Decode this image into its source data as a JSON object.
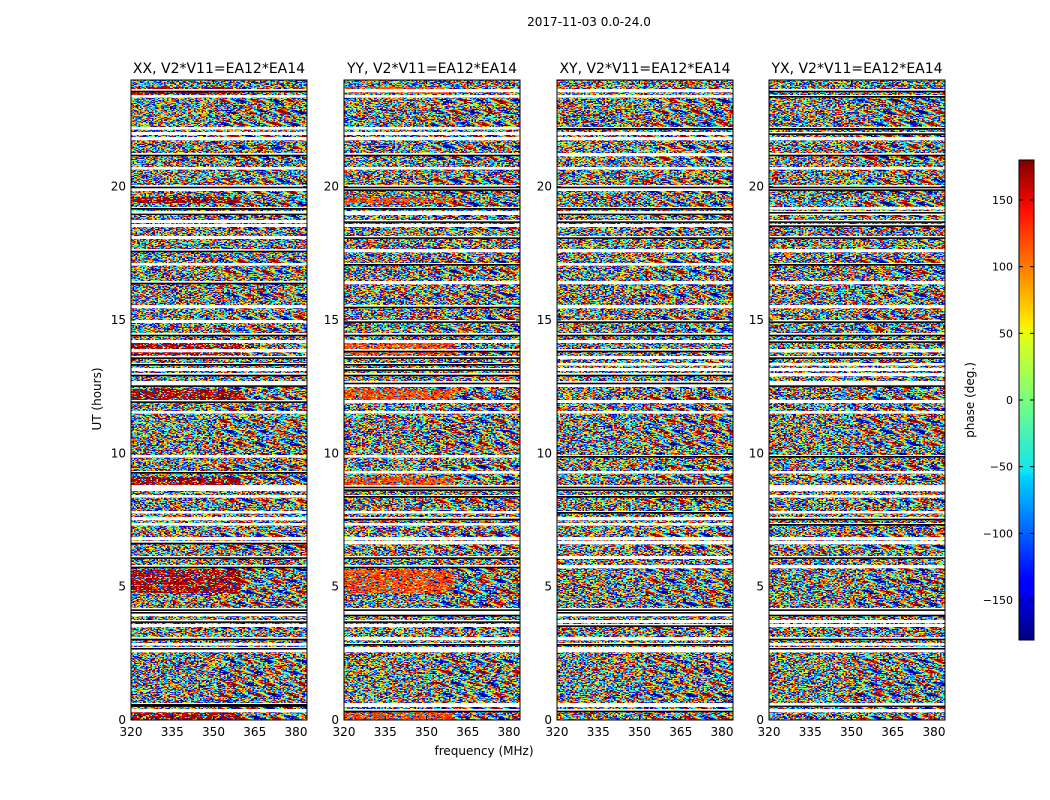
{
  "chart_data": {
    "type": "heatmap",
    "suptitle": "2017-11-03 0.0-24.0",
    "xlabel": "frequency (MHz)",
    "ylabel": "UT (hours)",
    "xlim": [
      320,
      384
    ],
    "ylim": [
      0,
      24
    ],
    "x_ticks": [
      320,
      335,
      350,
      365,
      380
    ],
    "y_ticks": [
      0,
      5,
      10,
      15,
      20
    ],
    "panels": [
      {
        "title": "XX, V2*V11=EA12*EA14",
        "polarization": "XX",
        "bias_phase_deg": 165,
        "red_hours": [
          0.1,
          0.3,
          4.9,
          5.2,
          5.5,
          8.9,
          9.0,
          12.1,
          12.3,
          13.8,
          14.0,
          19.5,
          23.6
        ]
      },
      {
        "title": "YY, V2*V11=EA12*EA14",
        "polarization": "YY",
        "bias_phase_deg": 110,
        "red_hours": [
          0.1,
          0.3,
          4.9,
          5.2,
          5.5,
          8.9,
          9.0,
          12.1,
          12.3,
          13.8,
          14.0,
          19.5,
          23.6
        ]
      },
      {
        "title": "XY, V2*V11=EA12*EA14",
        "polarization": "XY",
        "bias_phase_deg": null,
        "red_hours": []
      },
      {
        "title": "YX, V2*V11=EA12*EA14",
        "polarization": "YX",
        "bias_phase_deg": null,
        "red_hours": []
      }
    ],
    "flagged_hours": [
      0.35,
      0.55,
      0.6,
      2.6,
      2.7,
      2.85,
      3.05,
      3.55,
      3.7,
      3.95,
      4.05,
      4.15,
      5.75,
      6.1,
      6.65,
      6.8,
      7.35,
      7.55,
      7.8,
      8.4,
      8.65,
      8.75,
      9.3,
      9.9,
      11.55,
      11.95,
      12.55,
      12.65,
      12.95,
      13.15,
      13.35,
      13.6,
      13.85,
      14.2,
      14.45,
      14.95,
      15.5,
      16.4,
      17.1,
      17.6,
      18.1,
      18.55,
      18.7,
      19.0,
      19.05,
      19.2,
      19.9,
      20.0,
      20.7,
      21.2,
      21.8,
      22.0,
      22.2,
      23.4,
      23.6
    ],
    "colorbar": {
      "label": "phase (deg.)",
      "range": [
        -180,
        180
      ],
      "ticks": [
        150,
        100,
        50,
        0,
        -50,
        -100,
        -150
      ],
      "tick_labels": [
        "150",
        "100",
        "50",
        "0",
        "−50",
        "−100",
        "−150"
      ],
      "colormap": "jet"
    }
  }
}
